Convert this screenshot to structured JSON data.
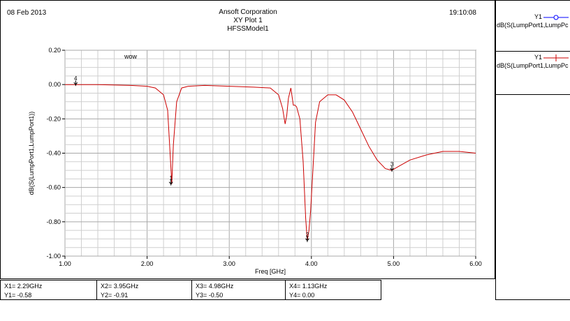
{
  "header": {
    "date": "08 Feb 2013",
    "company": "Ansoft Corporation",
    "plot_name": "XY Plot 1",
    "model": "HFSSModel1",
    "time": "19:10:08"
  },
  "legend": [
    {
      "label": "Y1",
      "expr": "dB(S(LumpPort1,LumpPc",
      "color": "#0000ff",
      "symbol": "circle"
    },
    {
      "label": "Y1",
      "expr": "dB(S(LumpPort1,LumpPc",
      "color": "#cc0000",
      "symbol": "plus"
    }
  ],
  "markers": [
    {
      "x_label": "X1= 2.29GHz",
      "y_label": "Y1= -0.58"
    },
    {
      "x_label": "X2= 3.95GHz",
      "y_label": "Y2= -0.91"
    },
    {
      "x_label": "X3= 4.98GHz",
      "y_label": "Y3= -0.50"
    },
    {
      "x_label": "X4= 1.13GHz",
      "y_label": "Y4= 0.00"
    }
  ],
  "chart_data": {
    "type": "line",
    "title": "XY Plot 1",
    "xlabel": "Freq [GHz]",
    "ylabel": "dB(S(LumpPort1,LumpPort1))",
    "xlim": [
      1.0,
      6.0
    ],
    "ylim": [
      -1.0,
      0.2
    ],
    "xticks": [
      "1.00",
      "2.00",
      "3.00",
      "4.00",
      "5.00",
      "6.00"
    ],
    "yticks": [
      "0.20",
      "0.00",
      "-0.20",
      "-0.40",
      "-0.60",
      "-0.80",
      "-1.00"
    ],
    "grid": true,
    "annotation": "wow",
    "series": [
      {
        "color": "#cc0000",
        "x": [
          1.0,
          1.4,
          1.8,
          2.0,
          2.1,
          2.2,
          2.25,
          2.28,
          2.3,
          2.32,
          2.36,
          2.42,
          2.5,
          2.7,
          3.0,
          3.3,
          3.5,
          3.6,
          3.65,
          3.68,
          3.7,
          3.72,
          3.75,
          3.78,
          3.8,
          3.82,
          3.86,
          3.9,
          3.93,
          3.95,
          3.97,
          3.99,
          4.02,
          4.05,
          4.1,
          4.2,
          4.3,
          4.4,
          4.5,
          4.6,
          4.7,
          4.8,
          4.9,
          4.98,
          5.05,
          5.2,
          5.4,
          5.6,
          5.8,
          6.0
        ],
        "y": [
          0.0,
          0.0,
          -0.005,
          -0.01,
          -0.02,
          -0.06,
          -0.15,
          -0.4,
          -0.58,
          -0.35,
          -0.1,
          -0.02,
          -0.01,
          -0.005,
          -0.01,
          -0.015,
          -0.02,
          -0.06,
          -0.14,
          -0.23,
          -0.18,
          -0.08,
          -0.02,
          -0.12,
          -0.12,
          -0.13,
          -0.2,
          -0.45,
          -0.78,
          -0.91,
          -0.85,
          -0.74,
          -0.48,
          -0.22,
          -0.1,
          -0.06,
          -0.06,
          -0.09,
          -0.16,
          -0.26,
          -0.36,
          -0.44,
          -0.49,
          -0.5,
          -0.48,
          -0.44,
          -0.41,
          -0.39,
          -0.39,
          -0.4
        ]
      }
    ],
    "markers": [
      {
        "id": "1",
        "x": 2.29,
        "y": -0.58
      },
      {
        "id": "2",
        "x": 3.95,
        "y": -0.91
      },
      {
        "id": "3",
        "x": 4.98,
        "y": -0.5
      },
      {
        "id": "4",
        "x": 1.13,
        "y": 0.0
      }
    ]
  }
}
